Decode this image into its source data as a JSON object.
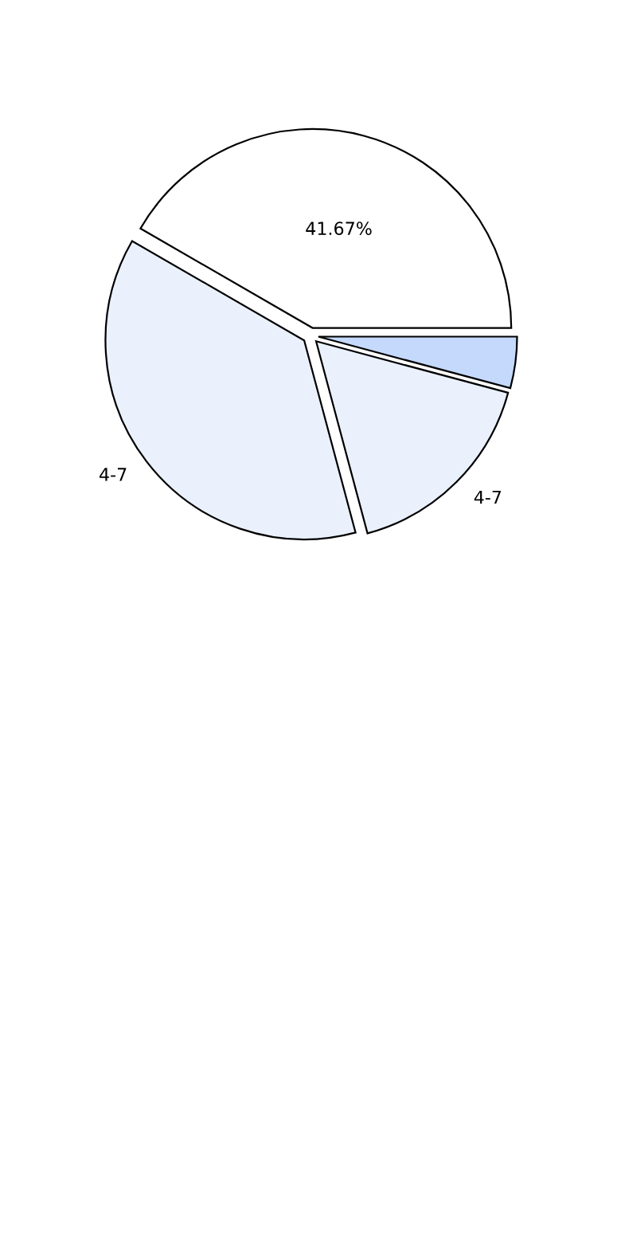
{
  "chart_data": {
    "type": "pie",
    "categories": [
      null,
      "4-7",
      "4-7",
      null
    ],
    "values": [
      41.67,
      37.5,
      16.67,
      4.17
    ],
    "colors": [
      "#ffffff",
      "#eaf1fd",
      "#eaf1fd",
      "#c5d9fc"
    ],
    "value_labels": [
      "41.67%",
      null,
      null,
      null
    ],
    "legend": false
  }
}
